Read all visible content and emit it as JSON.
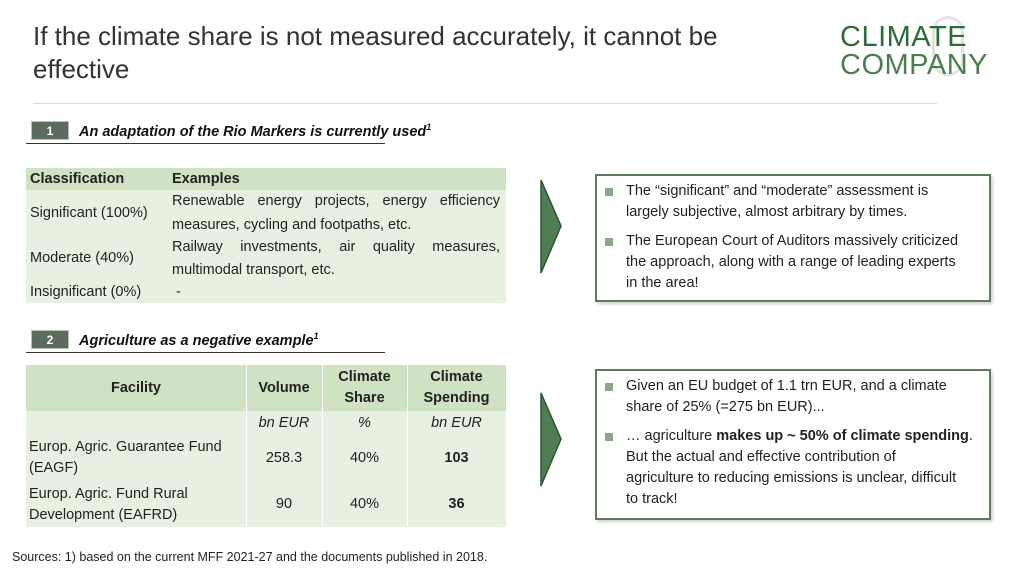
{
  "header": {
    "title": "If the climate share is not measured accurately, it cannot be effective",
    "logo_line1": "CLIMATE",
    "logo_line2": "COMPANY"
  },
  "colors": {
    "accent": "#4a7f52",
    "table_header": "#cfe2c4",
    "table_body": "#e8f1e1",
    "badge": "#5b6b5f"
  },
  "section1": {
    "number": "1",
    "heading": "An adaptation of the Rio Markers is currently used",
    "heading_sup": "1",
    "table": {
      "headers": [
        "Classification",
        "Examples"
      ],
      "rows": [
        {
          "classification": "Significant (100%)",
          "examples_line1": "Renewable energy projects, energy efficiency",
          "examples_line2": "measures, cycling and footpaths, etc."
        },
        {
          "classification": "Moderate (40%)",
          "examples_line1": "Railway investments, air quality measures,",
          "examples_line2": "multimodal transport, etc."
        },
        {
          "classification": "Insignificant (0%)",
          "examples_line1": "-",
          "examples_line2": ""
        }
      ]
    },
    "box": {
      "bullets": [
        {
          "line1": "The “significant” and “moderate” assessment is",
          "line2": "largely subjective, almost arbitrary by times."
        },
        {
          "line1": "The European Court of Auditors massively criticized",
          "line2": "the approach, along with a range of leading experts",
          "line3": "in the area!"
        }
      ]
    }
  },
  "section2": {
    "number": "2",
    "heading": "Agriculture as a negative example",
    "heading_sup": "1",
    "table": {
      "headers": {
        "facility": "Facility",
        "volume": "Volume",
        "share_line1": "Climate",
        "share_line2": "Share",
        "spending_line1": "Climate",
        "spending_line2": "Spending"
      },
      "units": {
        "volume": "bn EUR",
        "share": "%",
        "spending": "bn EUR"
      },
      "rows": [
        {
          "facility_line1": "Europ. Agric. Guarantee Fund",
          "facility_line2": "(EAGF)",
          "volume": "258.3",
          "share": "40%",
          "spending": "103"
        },
        {
          "facility_line1": "Europ. Agric. Fund Rural",
          "facility_line2": "Development (EAFRD)",
          "volume": "90",
          "share": "40%",
          "spending": "36"
        }
      ]
    },
    "box": {
      "bullet1": {
        "line1": "Given an EU budget of 1.1 trn EUR, and a climate",
        "line2": "share of 25% (=275 bn EUR)..."
      },
      "bullet2": {
        "line1_pre": "… agriculture ",
        "line1_bold": "makes up ~ 50% of climate spending",
        "line1_post": ".",
        "line2": "But the actual and effective  contribution of",
        "line3": "agriculture to reducing emissions is unclear, difficult",
        "line4": "to track!"
      }
    }
  },
  "footer": {
    "sources": "Sources: 1) based on the current MFF 2021-27 and the documents published in 2018."
  }
}
